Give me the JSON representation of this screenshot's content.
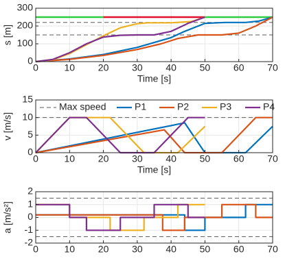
{
  "colors": {
    "P1": "#0072bd",
    "P2": "#d95319",
    "P3": "#edb120",
    "P4": "#7e2f8e",
    "green": "#2ecc40",
    "red": "#e0102a",
    "dashed": "#595959",
    "grid": "#e6e6e6",
    "axis": "#262626"
  },
  "chart_data": [
    {
      "type": "line",
      "xlabel": "Time [s]",
      "ylabel": "s [m]",
      "xlim": [
        0,
        70
      ],
      "ylim": [
        0,
        300
      ],
      "xticks": [
        0,
        10,
        20,
        30,
        40,
        50,
        60,
        70
      ],
      "yticks": [
        0,
        100,
        200,
        300
      ],
      "grid": true,
      "reference_lines": [
        {
          "style": "dashed",
          "y": 150
        },
        {
          "style": "dashed",
          "y": 220
        },
        {
          "style": "dashed",
          "y": 250
        }
      ],
      "highlight_segments": [
        {
          "color": "green",
          "y": 250,
          "x": [
            0,
            20
          ]
        },
        {
          "color": "red",
          "y": 250,
          "x": [
            20,
            50
          ]
        },
        {
          "color": "green",
          "y": 250,
          "x": [
            50,
            70
          ]
        }
      ],
      "series": [
        {
          "key": "P1",
          "x": [
            0,
            10,
            20,
            30,
            40,
            44,
            50,
            56,
            62,
            66,
            70
          ],
          "y": [
            0,
            15,
            40,
            80,
            135,
            170,
            215,
            220,
            220,
            228,
            250
          ]
        },
        {
          "key": "P2",
          "x": [
            0,
            10,
            20,
            30,
            37,
            42,
            48,
            55,
            60,
            65,
            70
          ],
          "y": [
            0,
            13,
            35,
            68,
            100,
            130,
            150,
            150,
            160,
            200,
            250
          ]
        },
        {
          "key": "P3",
          "x": [
            0,
            5,
            10,
            15,
            20,
            25,
            30,
            33,
            40,
            46,
            50
          ],
          "y": [
            0,
            10,
            45,
            95,
            145,
            190,
            213,
            218,
            218,
            225,
            250
          ]
        },
        {
          "key": "P4",
          "x": [
            0,
            5,
            10,
            15,
            20,
            25,
            30,
            35,
            40,
            45,
            50
          ],
          "y": [
            0,
            12,
            50,
            100,
            138,
            148,
            150,
            150,
            170,
            215,
            250
          ]
        }
      ]
    },
    {
      "type": "line",
      "xlabel": "Time [s]",
      "ylabel": "v [m/s]",
      "xlim": [
        0,
        70
      ],
      "ylim": [
        0,
        15
      ],
      "xticks": [
        0,
        10,
        20,
        30,
        40,
        50,
        60,
        70
      ],
      "yticks": [
        0,
        5,
        10,
        15
      ],
      "grid": true,
      "reference_lines": [
        {
          "style": "dashed",
          "y": 10,
          "legend": "Max speed"
        }
      ],
      "legend": {
        "position": "top",
        "entries": [
          "Max speed",
          "P1",
          "P2",
          "P3",
          "P4"
        ]
      },
      "series": [
        {
          "key": "P1",
          "name": "P1",
          "x": [
            0,
            44,
            50,
            62,
            70
          ],
          "y": [
            0,
            8.5,
            0,
            0,
            7.5
          ]
        },
        {
          "key": "P2",
          "name": "P2",
          "x": [
            0,
            38,
            44,
            55,
            65,
            70
          ],
          "y": [
            0,
            6.5,
            0,
            0,
            10,
            10
          ]
        },
        {
          "key": "P3",
          "name": "P3",
          "x": [
            0,
            10,
            22,
            32,
            42,
            50
          ],
          "y": [
            0,
            10,
            10,
            0,
            0,
            7.5
          ]
        },
        {
          "key": "P4",
          "name": "P4",
          "x": [
            0,
            10,
            15,
            25,
            35,
            45,
            50
          ],
          "y": [
            0,
            10,
            10,
            0,
            0,
            10,
            10
          ]
        }
      ]
    },
    {
      "type": "line",
      "xlabel": "",
      "ylabel": "a [m/s²]",
      "xlim": [
        0,
        70
      ],
      "ylim": [
        -2,
        2
      ],
      "xticks": [
        0,
        10,
        20,
        30,
        40,
        50,
        60,
        70
      ],
      "yticks": [
        -2,
        -1,
        0,
        1,
        2
      ],
      "grid": true,
      "reference_lines": [
        {
          "style": "dashed",
          "y": 1.5
        },
        {
          "style": "dashed",
          "y": -1.5
        }
      ],
      "series": [
        {
          "key": "P1",
          "x": [
            0,
            44,
            44,
            50,
            50,
            62,
            62,
            70
          ],
          "y": [
            0.2,
            0.2,
            -1,
            -1,
            0,
            0,
            1,
            1
          ]
        },
        {
          "key": "P2",
          "x": [
            0,
            37.5,
            37.5,
            44,
            44,
            55,
            55,
            65,
            65,
            70
          ],
          "y": [
            0.2,
            0.2,
            -1,
            -1,
            0,
            0,
            1,
            1,
            0,
            0
          ]
        },
        {
          "key": "P3",
          "x": [
            0,
            10,
            10,
            22,
            22,
            32,
            32,
            42,
            42,
            50
          ],
          "y": [
            1,
            1,
            0,
            0,
            -1,
            -1,
            0,
            0,
            1,
            1
          ]
        },
        {
          "key": "P4",
          "x": [
            0,
            10,
            10,
            15,
            15,
            25,
            25,
            35,
            35,
            45,
            45,
            50
          ],
          "y": [
            1,
            1,
            0,
            0,
            -1,
            -1,
            0,
            0,
            1,
            1,
            0,
            0
          ]
        }
      ]
    }
  ]
}
